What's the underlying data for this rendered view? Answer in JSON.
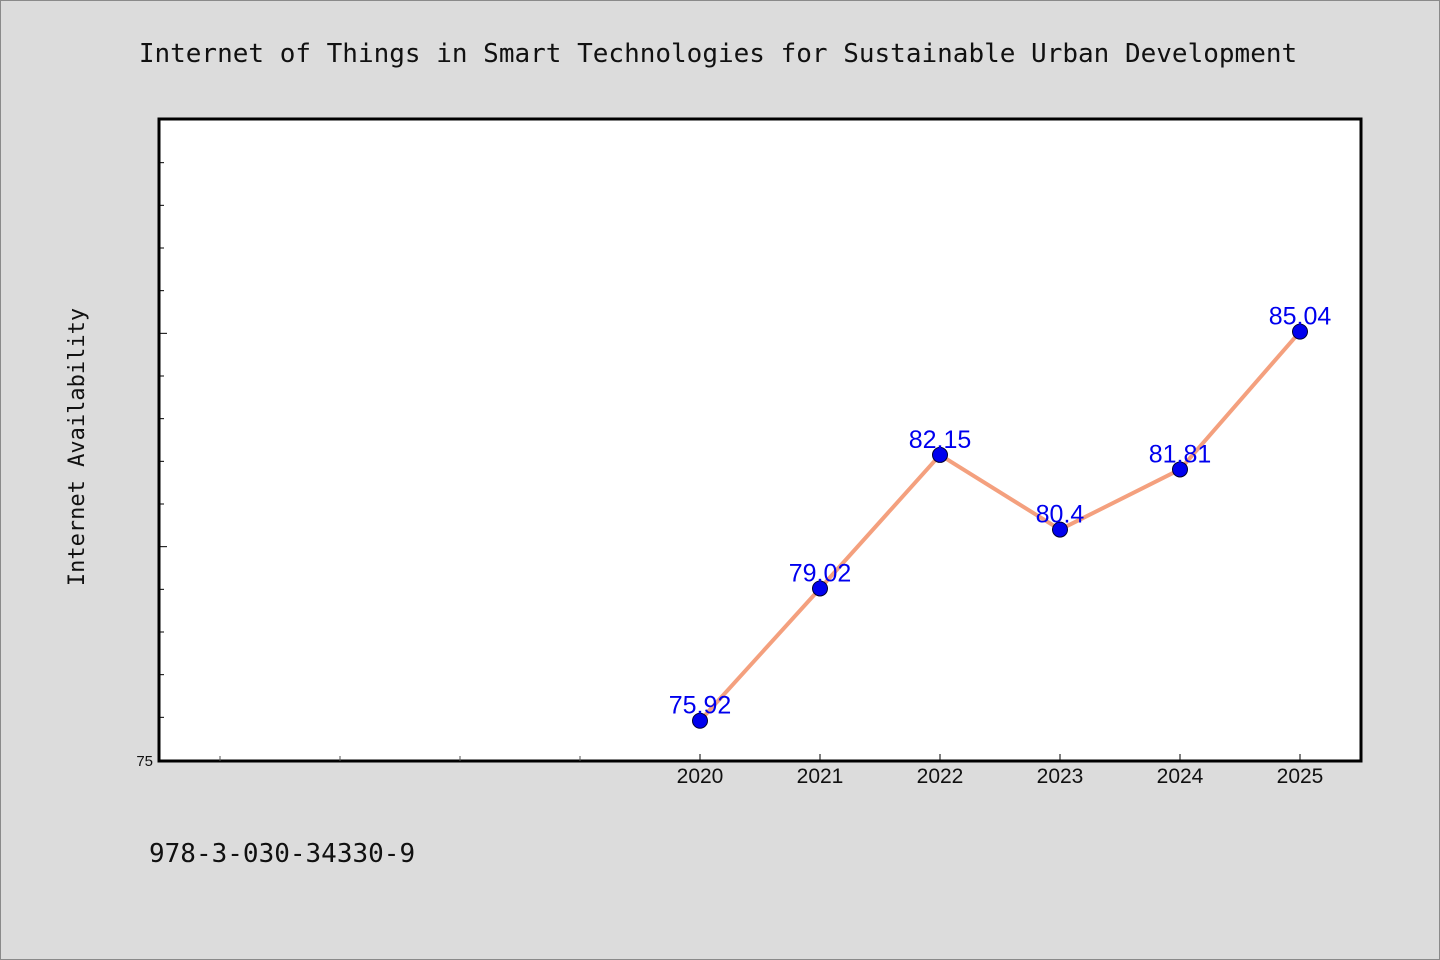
{
  "chart_data": {
    "type": "line",
    "title": "Internet of Things in Smart Technologies for Sustainable Urban Development",
    "xlabel": "",
    "ylabel": "Internet Availability",
    "x": [
      "2020",
      "2021",
      "2022",
      "2023",
      "2024",
      "2025"
    ],
    "values": [
      75.92,
      79.02,
      82.15,
      80.4,
      81.81,
      85.04
    ],
    "data_labels": [
      "75.92",
      "79.02",
      "82.15",
      "80.4",
      "81.81",
      "85.04"
    ],
    "y_tick_labels": [
      "75"
    ],
    "ylim": [
      75,
      90
    ],
    "y_major_step": 5,
    "y_minor_step": 1,
    "grid": false,
    "legend": "none"
  },
  "footer": {
    "text": "978-3-030-34330-9"
  },
  "colors": {
    "line": "#f4a07e",
    "marker": "#0000ee",
    "label": "#0000ee",
    "background": "#dcdcdc",
    "plot_background": "#ffffff"
  }
}
